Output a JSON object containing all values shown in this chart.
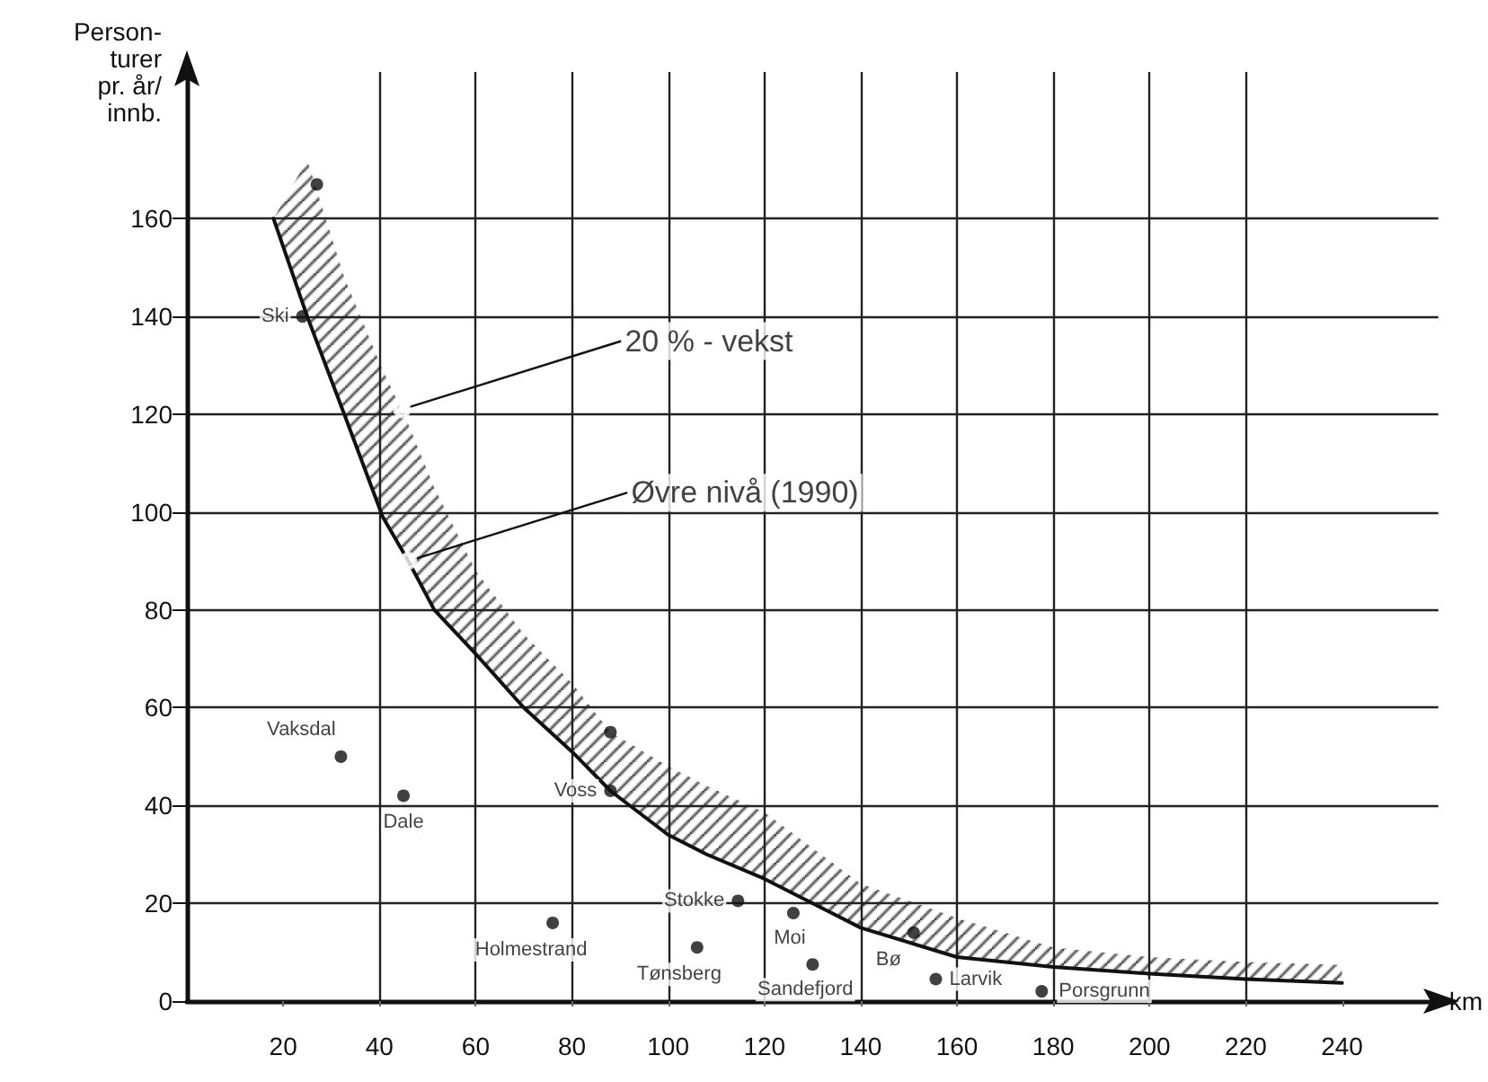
{
  "chart_data": {
    "type": "scatter",
    "xlabel": "km",
    "ylabel": "Person-\nturer\npr. år/\ninnb.",
    "xlim": [
      0,
      260
    ],
    "ylim": [
      0,
      190
    ],
    "xticks": [
      20,
      40,
      60,
      80,
      100,
      120,
      140,
      160,
      180,
      200,
      220,
      240
    ],
    "yticks": [
      0,
      20,
      40,
      60,
      80,
      100,
      120,
      140,
      160
    ],
    "grid": true,
    "series": [
      {
        "type": "line",
        "color": "#111111",
        "x": [
          18,
          25,
          32.7,
          40.7,
          46,
          51.4,
          60,
          70,
          80,
          88,
          100,
          108,
          120,
          140,
          160,
          180,
          200,
          220,
          240
        ],
        "values": [
          160,
          140,
          120,
          99,
          90,
          80,
          71,
          60,
          51,
          43,
          34,
          30,
          25,
          15,
          9,
          7,
          5.6,
          4.5,
          3.7
        ],
        "lower": [
          160,
          140,
          120,
          99,
          90,
          80,
          71,
          60,
          51,
          43,
          34,
          30,
          25,
          15,
          9,
          7,
          5.6,
          4.5,
          3.7
        ],
        "upper": [
          160,
          172,
          148,
          129,
          118,
          105,
          88,
          75,
          65,
          55,
          48,
          44,
          38.6,
          24,
          17,
          11,
          9,
          8,
          7.4
        ]
      },
      {
        "color": "#111111",
        "x": [
          24,
          27,
          32,
          45,
          76,
          88,
          88,
          106,
          114.5,
          126,
          130,
          151,
          155.6,
          177.6
        ],
        "values": [
          140,
          167,
          50,
          42,
          16,
          43,
          55,
          11,
          20.5,
          18,
          7.5,
          14,
          4.5,
          2
        ],
        "value_labels": [
          "Ski",
          null,
          "Vaksdal",
          "Dale",
          "Holmestrand",
          "Voss",
          null,
          "Tønsberg",
          "Stokke",
          "Moi",
          "Sandefjord",
          "Bø",
          "Larvik",
          "Porsgrunn"
        ]
      }
    ],
    "annotations": [
      {
        "text": "20 % - vekst",
        "x": 44.7,
        "y": 121
      },
      {
        "text": "Øvre nivå (1990)",
        "x": 46,
        "y": 90
      }
    ]
  }
}
